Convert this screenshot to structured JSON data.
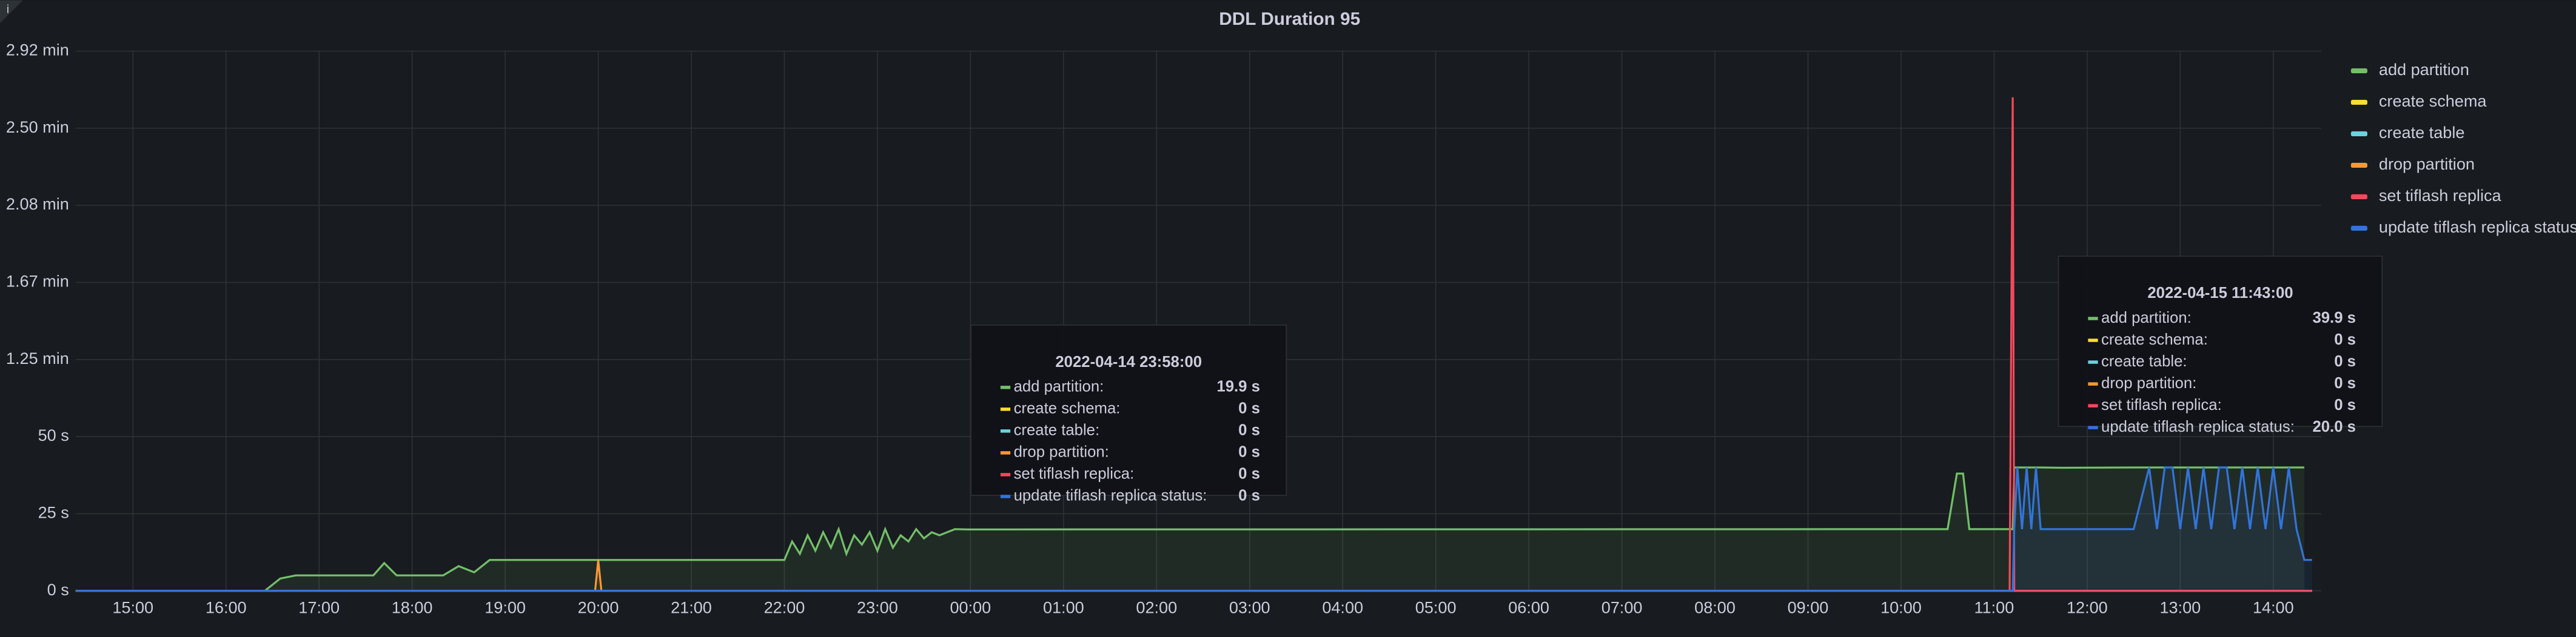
{
  "chart_data": {
    "type": "line",
    "title": "DDL Duration 95",
    "x": [
      "2022-04-14 14:23",
      "2022-04-14 16:25",
      "2022-04-14 16:35",
      "2022-04-14 16:45",
      "2022-04-14 17:35",
      "2022-04-14 17:42",
      "2022-04-14 17:50",
      "2022-04-14 18:20",
      "2022-04-14 18:30",
      "2022-04-14 18:40",
      "2022-04-14 18:50",
      "2022-04-14 19:58",
      "2022-04-14 20:00",
      "2022-04-14 20:02",
      "2022-04-14 22:00",
      "2022-04-14 22:05",
      "2022-04-14 22:10",
      "2022-04-14 22:15",
      "2022-04-14 22:20",
      "2022-04-14 22:25",
      "2022-04-14 22:30",
      "2022-04-14 22:35",
      "2022-04-14 22:40",
      "2022-04-14 22:45",
      "2022-04-14 22:50",
      "2022-04-14 22:55",
      "2022-04-14 23:00",
      "2022-04-14 23:05",
      "2022-04-14 23:10",
      "2022-04-14 23:15",
      "2022-04-14 23:20",
      "2022-04-14 23:25",
      "2022-04-14 23:30",
      "2022-04-14 23:35",
      "2022-04-14 23:40",
      "2022-04-14 23:50",
      "2022-04-14 23:58",
      "2022-04-15 10:30",
      "2022-04-15 10:36",
      "2022-04-15 10:40",
      "2022-04-15 10:44",
      "2022-04-15 11:10",
      "2022-04-15 11:12",
      "2022-04-15 11:13",
      "2022-04-15 11:15",
      "2022-04-15 11:18",
      "2022-04-15 11:21",
      "2022-04-15 11:24",
      "2022-04-15 11:27",
      "2022-04-15 11:30",
      "2022-04-15 11:43",
      "2022-04-15 12:30",
      "2022-04-15 12:40",
      "2022-04-15 12:45",
      "2022-04-15 12:50",
      "2022-04-15 12:55",
      "2022-04-15 13:00",
      "2022-04-15 13:05",
      "2022-04-15 13:10",
      "2022-04-15 13:15",
      "2022-04-15 13:20",
      "2022-04-15 13:25",
      "2022-04-15 13:30",
      "2022-04-15 13:35",
      "2022-04-15 13:40",
      "2022-04-15 13:45",
      "2022-04-15 13:50",
      "2022-04-15 13:55",
      "2022-04-15 14:00",
      "2022-04-15 14:05",
      "2022-04-15 14:10",
      "2022-04-15 14:15",
      "2022-04-15 14:20",
      "2022-04-15 14:25"
    ],
    "series": [
      {
        "name": "add partition",
        "color": "#73bf69",
        "fill": true,
        "values": [
          0,
          0,
          4,
          5,
          5,
          9,
          5,
          5,
          8,
          6,
          10,
          10,
          10,
          10,
          10,
          16,
          12,
          18,
          13,
          19,
          14,
          20,
          12,
          18,
          15,
          19,
          13,
          20,
          14,
          18,
          16,
          20,
          17,
          19,
          18,
          20,
          19.9,
          20,
          38,
          38,
          20,
          20,
          20,
          40,
          40,
          40,
          40,
          40,
          40,
          40,
          39.9,
          40,
          40,
          40,
          40,
          40,
          40,
          40,
          40,
          40,
          40,
          40,
          40,
          40,
          40,
          40,
          40,
          40,
          40,
          40,
          40,
          40,
          40,
          null
        ]
      },
      {
        "name": "create schema",
        "color": "#fade2a",
        "values": [
          0,
          0,
          0,
          0,
          0,
          0,
          0,
          0,
          0,
          0,
          0,
          0,
          0,
          0,
          0,
          0,
          0,
          0,
          0,
          0,
          0,
          0,
          0,
          0,
          0,
          0,
          0,
          0,
          0,
          0,
          0,
          0,
          0,
          0,
          0,
          0,
          0,
          0,
          0,
          0,
          0,
          0,
          0,
          0,
          0,
          0,
          0,
          0,
          0,
          0,
          0,
          0,
          0,
          0,
          0,
          0,
          0,
          0,
          0,
          0,
          0,
          0,
          0,
          0,
          0,
          0,
          0,
          0,
          0,
          0,
          0,
          0,
          0,
          0
        ]
      },
      {
        "name": "create table",
        "color": "#6ed0e0",
        "values": [
          0,
          0,
          0,
          0,
          0,
          0,
          0,
          0,
          0,
          0,
          0,
          0,
          0,
          0,
          0,
          0,
          0,
          0,
          0,
          0,
          0,
          0,
          0,
          0,
          0,
          0,
          0,
          0,
          0,
          0,
          0,
          0,
          0,
          0,
          0,
          0,
          0,
          0,
          0,
          0,
          0,
          0,
          0,
          0,
          0,
          0,
          0,
          0,
          0,
          0,
          0,
          0,
          0,
          0,
          0,
          0,
          0,
          0,
          0,
          0,
          0,
          0,
          0,
          0,
          0,
          0,
          0,
          0,
          0,
          0,
          0,
          0,
          0,
          0
        ]
      },
      {
        "name": "drop partition",
        "color": "#ff9830",
        "values": [
          0,
          0,
          0,
          0,
          0,
          0,
          0,
          0,
          0,
          0,
          0,
          0,
          10,
          0,
          0,
          0,
          0,
          0,
          0,
          0,
          0,
          0,
          0,
          0,
          0,
          0,
          0,
          0,
          0,
          0,
          0,
          0,
          0,
          0,
          0,
          0,
          0,
          0,
          0,
          0,
          0,
          0,
          0,
          0,
          0,
          0,
          0,
          0,
          0,
          0,
          0,
          0,
          0,
          0,
          0,
          0,
          0,
          0,
          0,
          0,
          0,
          0,
          0,
          0,
          0,
          0,
          0,
          0,
          0,
          0,
          0,
          0,
          0,
          0
        ]
      },
      {
        "name": "set tiflash replica",
        "color": "#f2495c",
        "values": [
          0,
          0,
          0,
          0,
          0,
          0,
          0,
          0,
          0,
          0,
          0,
          0,
          0,
          0,
          0,
          0,
          0,
          0,
          0,
          0,
          0,
          0,
          0,
          0,
          0,
          0,
          0,
          0,
          0,
          0,
          0,
          0,
          0,
          0,
          0,
          0,
          0,
          0,
          0,
          0,
          0,
          0,
          160,
          0,
          0,
          0,
          0,
          0,
          0,
          0,
          0,
          0,
          0,
          0,
          0,
          0,
          0,
          0,
          0,
          0,
          0,
          0,
          0,
          0,
          0,
          0,
          0,
          0,
          0,
          0,
          0,
          0,
          0,
          0
        ]
      },
      {
        "name": "update tiflash replica status",
        "color": "#3274d9",
        "fill": true,
        "values": [
          0,
          0,
          0,
          0,
          0,
          0,
          0,
          0,
          0,
          0,
          0,
          0,
          0,
          0,
          0,
          0,
          0,
          0,
          0,
          0,
          0,
          0,
          0,
          0,
          0,
          0,
          0,
          0,
          0,
          0,
          0,
          0,
          0,
          0,
          0,
          0,
          0,
          0,
          0,
          0,
          0,
          0,
          0,
          20,
          40,
          20,
          40,
          20,
          40,
          20,
          20,
          20,
          40,
          20,
          40,
          40,
          20,
          40,
          20,
          40,
          20,
          40,
          40,
          20,
          40,
          20,
          40,
          20,
          40,
          20,
          40,
          20,
          10,
          10
        ]
      }
    ],
    "xlim": [
      "2022-04-14 14:23",
      "2022-04-15 14:31"
    ],
    "xticks": [
      {
        "value": "2022-04-14 15:00",
        "label": "15:00"
      },
      {
        "value": "2022-04-14 16:00",
        "label": "16:00"
      },
      {
        "value": "2022-04-14 17:00",
        "label": "17:00"
      },
      {
        "value": "2022-04-14 18:00",
        "label": "18:00"
      },
      {
        "value": "2022-04-14 19:00",
        "label": "19:00"
      },
      {
        "value": "2022-04-14 20:00",
        "label": "20:00"
      },
      {
        "value": "2022-04-14 21:00",
        "label": "21:00"
      },
      {
        "value": "2022-04-14 22:00",
        "label": "22:00"
      },
      {
        "value": "2022-04-14 23:00",
        "label": "23:00"
      },
      {
        "value": "2022-04-15 00:00",
        "label": "00:00"
      },
      {
        "value": "2022-04-15 01:00",
        "label": "01:00"
      },
      {
        "value": "2022-04-15 02:00",
        "label": "02:00"
      },
      {
        "value": "2022-04-15 03:00",
        "label": "03:00"
      },
      {
        "value": "2022-04-15 04:00",
        "label": "04:00"
      },
      {
        "value": "2022-04-15 05:00",
        "label": "05:00"
      },
      {
        "value": "2022-04-15 06:00",
        "label": "06:00"
      },
      {
        "value": "2022-04-15 07:00",
        "label": "07:00"
      },
      {
        "value": "2022-04-15 08:00",
        "label": "08:00"
      },
      {
        "value": "2022-04-15 09:00",
        "label": "09:00"
      },
      {
        "value": "2022-04-15 10:00",
        "label": "10:00"
      },
      {
        "value": "2022-04-15 11:00",
        "label": "11:00"
      },
      {
        "value": "2022-04-15 12:00",
        "label": "12:00"
      },
      {
        "value": "2022-04-15 13:00",
        "label": "13:00"
      },
      {
        "value": "2022-04-15 14:00",
        "label": "14:00"
      }
    ],
    "ylim": [
      0,
      175
    ],
    "yticks": [
      {
        "value": 0,
        "label": "0 s"
      },
      {
        "value": 25,
        "label": "25 s"
      },
      {
        "value": 50,
        "label": "50 s"
      },
      {
        "value": 75,
        "label": "1.25 min"
      },
      {
        "value": 100,
        "label": "1.67 min"
      },
      {
        "value": 125,
        "label": "2.08 min"
      },
      {
        "value": 150,
        "label": "2.50 min"
      },
      {
        "value": 175,
        "label": "2.92 min"
      }
    ],
    "grid": true,
    "legend": "right",
    "tooltips": [
      {
        "time": "2022-04-14 23:58:00",
        "rows": [
          {
            "name": "add partition:",
            "value": "19.9 s"
          },
          {
            "name": "create schema:",
            "value": "0 s"
          },
          {
            "name": "create table:",
            "value": "0 s"
          },
          {
            "name": "drop partition:",
            "value": "0 s"
          },
          {
            "name": "set tiflash replica:",
            "value": "0 s"
          },
          {
            "name": "update tiflash replica status:",
            "value": "0 s"
          }
        ]
      },
      {
        "time": "2022-04-15 11:43:00",
        "rows": [
          {
            "name": "add partition:",
            "value": "39.9 s"
          },
          {
            "name": "create schema:",
            "value": "0 s"
          },
          {
            "name": "create table:",
            "value": "0 s"
          },
          {
            "name": "drop partition:",
            "value": "0 s"
          },
          {
            "name": "set tiflash replica:",
            "value": "0 s"
          },
          {
            "name": "update tiflash replica status:",
            "value": "20.0 s"
          }
        ]
      }
    ]
  }
}
